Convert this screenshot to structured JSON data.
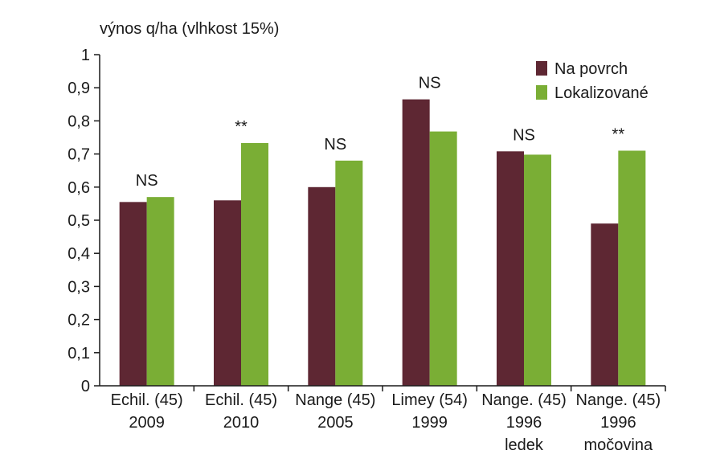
{
  "chart_data": {
    "type": "bar",
    "ylabel": "výnos q/ha (vlhkost 15%)",
    "ylim": [
      0,
      1
    ],
    "yticks": [
      "0",
      "0,1",
      "0,2",
      "0,3",
      "0,4",
      "0,5",
      "0,6",
      "0,7",
      "0,8",
      "0,9",
      "1"
    ],
    "categories": [
      [
        "Echil. (45)",
        "2009"
      ],
      [
        "Echil. (45)",
        "2010"
      ],
      [
        "Nange (45)",
        "2005"
      ],
      [
        "Limey (54)",
        "1999"
      ],
      [
        "Nange. (45)",
        "1996",
        "ledek"
      ],
      [
        "Nange. (45)",
        "1996",
        "močovina"
      ]
    ],
    "series": [
      {
        "name": "Na povrch",
        "color": "#5e2733",
        "values": [
          0.555,
          0.56,
          0.6,
          0.865,
          0.708,
          0.49
        ]
      },
      {
        "name": "Lokalizované",
        "color": "#7aae35",
        "values": [
          0.57,
          0.733,
          0.68,
          0.768,
          0.698,
          0.71
        ]
      }
    ],
    "significance": [
      "NS",
      "**",
      "NS",
      "NS",
      "NS",
      "**"
    ],
    "legend_position": "top-right",
    "grid": false
  }
}
